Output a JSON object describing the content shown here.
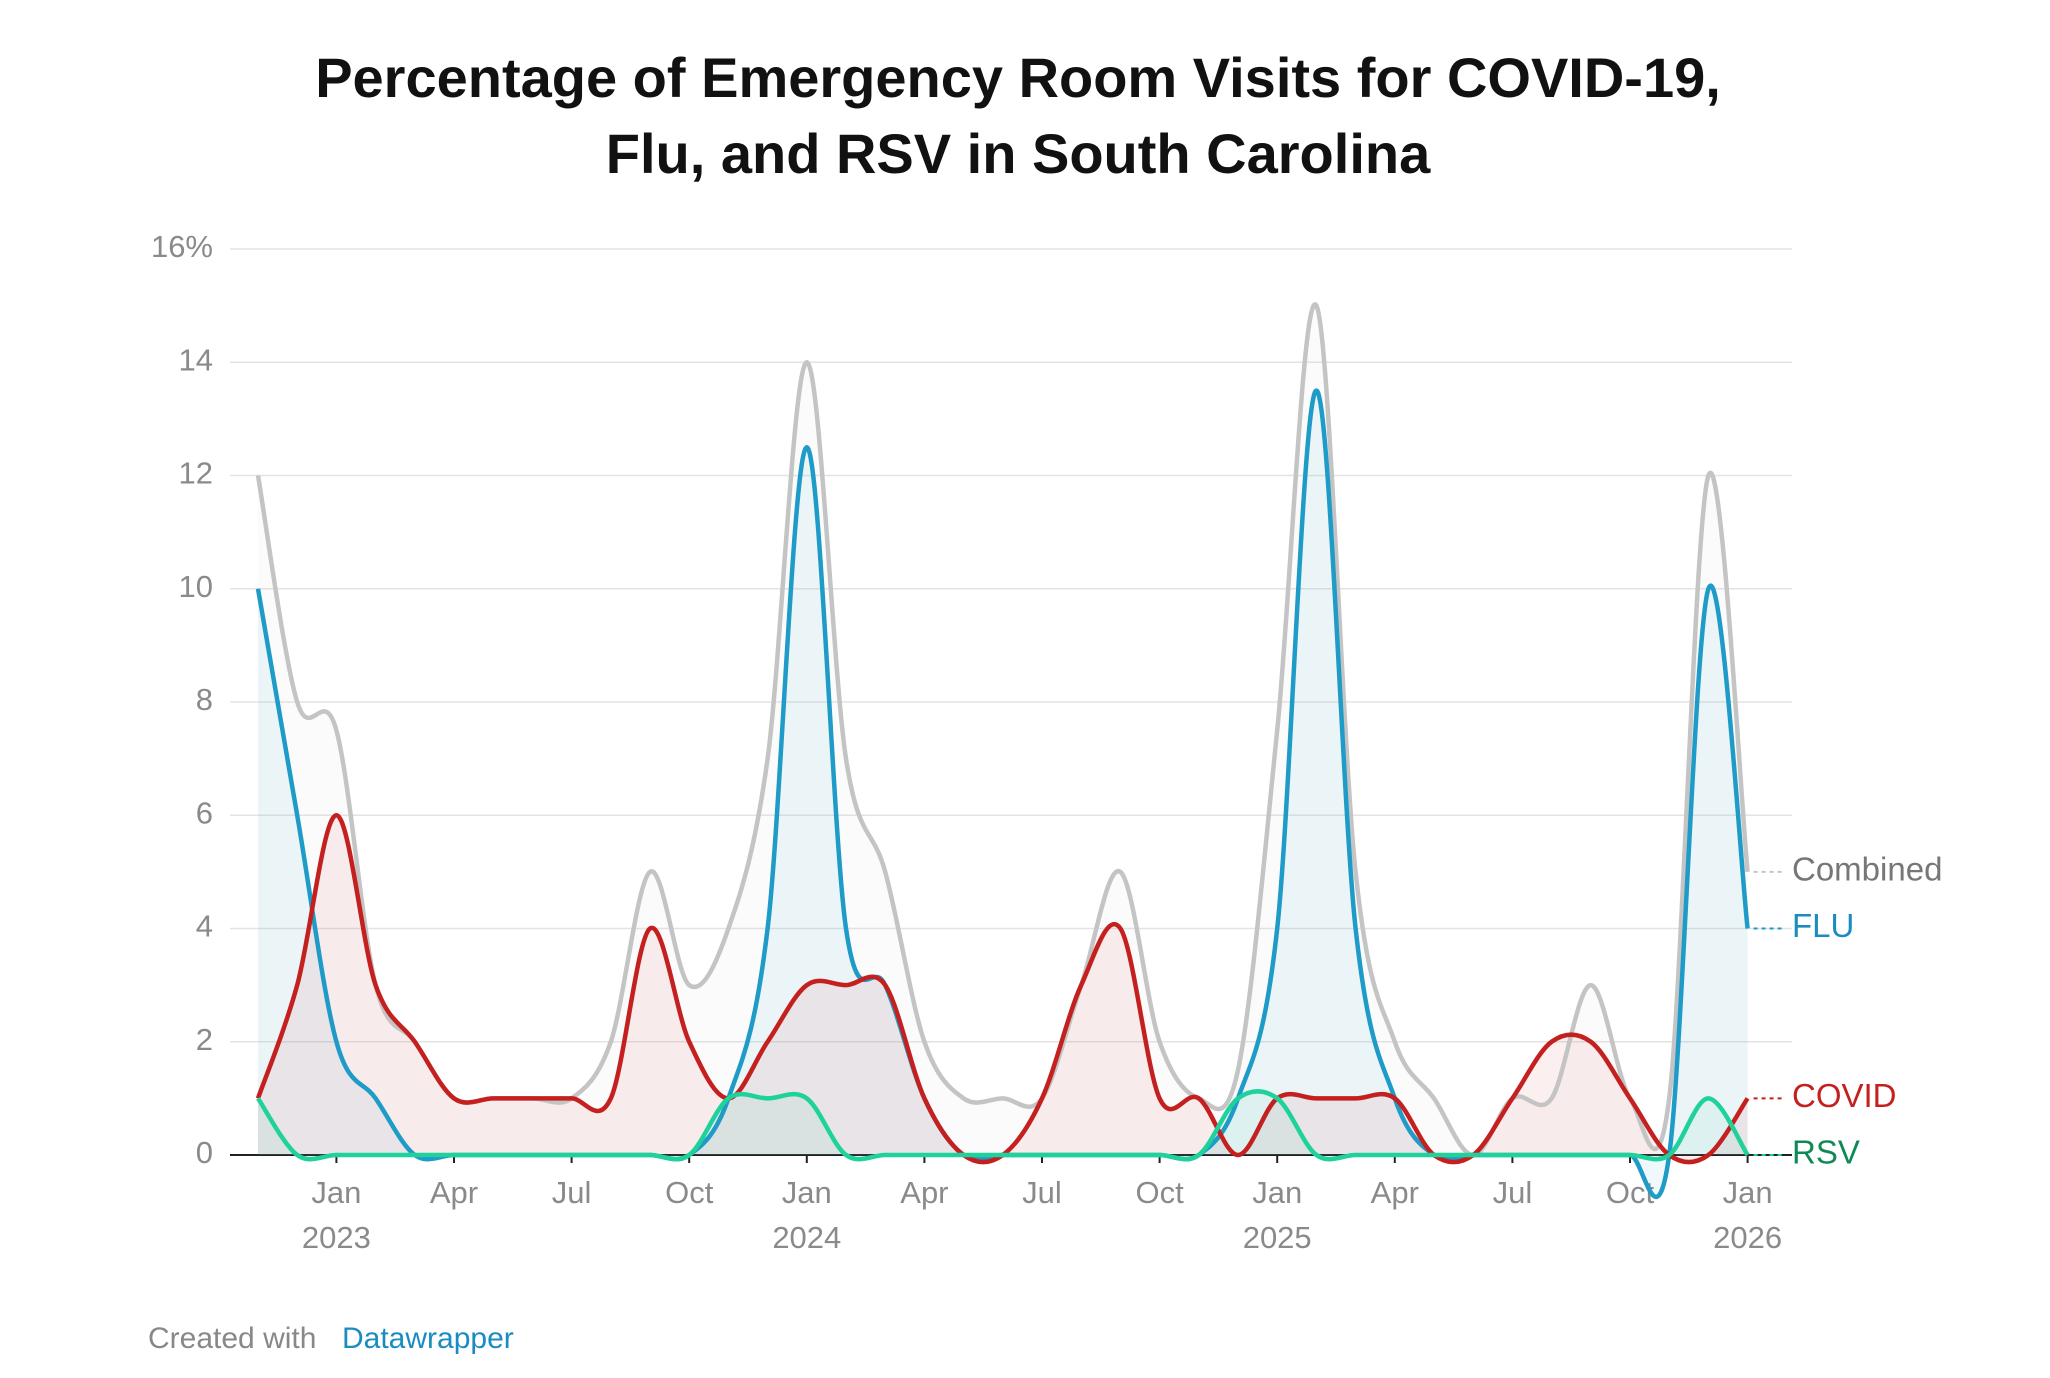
{
  "chart_data": {
    "type": "line",
    "title": "Percentage of Emergency Room Visits for COVID-19, Flu, and RSV in South Carolina",
    "footer": {
      "prefix": "Created with",
      "link": "Datawrapper"
    },
    "x": [
      "2022-11",
      "2022-12",
      "2023-01",
      "2023-02",
      "2023-03",
      "2023-04",
      "2023-05",
      "2023-06",
      "2023-07",
      "2023-08",
      "2023-09",
      "2023-10",
      "2023-11",
      "2023-12",
      "2024-01",
      "2024-02",
      "2024-03",
      "2024-04",
      "2024-05",
      "2024-06",
      "2024-07",
      "2024-08",
      "2024-09",
      "2024-10",
      "2024-11",
      "2024-12",
      "2025-01",
      "2025-02",
      "2025-03",
      "2025-04",
      "2025-05",
      "2025-06",
      "2025-07",
      "2025-08",
      "2025-09",
      "2025-10",
      "2025-11",
      "2025-12",
      "2026-01"
    ],
    "xticks": [
      {
        "value": "2023-01",
        "label": "Jan\n2023"
      },
      {
        "value": "2023-04",
        "label": "Apr"
      },
      {
        "value": "2023-07",
        "label": "Jul"
      },
      {
        "value": "2023-10",
        "label": "Oct"
      },
      {
        "value": "2024-01",
        "label": "Jan\n2024"
      },
      {
        "value": "2024-04",
        "label": "Apr"
      },
      {
        "value": "2024-07",
        "label": "Jul"
      },
      {
        "value": "2024-10",
        "label": "Oct"
      },
      {
        "value": "2025-01",
        "label": "Jan\n2025"
      },
      {
        "value": "2025-04",
        "label": "Apr"
      },
      {
        "value": "2025-07",
        "label": "Jul"
      },
      {
        "value": "2025-10",
        "label": "Oct"
      },
      {
        "value": "2026-01",
        "label": "Jan\n2026"
      }
    ],
    "ylim": [
      0,
      16
    ],
    "yticks": [
      0,
      2,
      4,
      6,
      8,
      10,
      12,
      14,
      {
        "value": 16,
        "label": "16%"
      }
    ],
    "grid": true,
    "series": [
      {
        "name": "Combined",
        "color": "#c4c4c4",
        "label_color": "#777777",
        "values": [
          12,
          8,
          7.5,
          3,
          2,
          1,
          1,
          1,
          1,
          2,
          5,
          3,
          4,
          7,
          14,
          7,
          5,
          2,
          1,
          1,
          1,
          3,
          5,
          2,
          1,
          1.5,
          7.5,
          15,
          5,
          2,
          1,
          0,
          1,
          1,
          3,
          1,
          1,
          12,
          5
        ]
      },
      {
        "name": "FLU",
        "color": "#1f9bc7",
        "label_color": "#1a8cc0",
        "values": [
          10,
          6,
          2,
          1,
          0,
          0,
          0,
          0,
          0,
          0,
          0,
          0,
          1,
          4,
          12.5,
          4,
          3,
          1,
          0,
          0,
          0,
          0,
          0,
          0,
          0,
          1,
          4,
          13.5,
          4,
          1,
          0,
          0,
          0,
          0,
          0,
          0,
          0,
          10,
          4
        ]
      },
      {
        "name": "COVID",
        "color": "#c4201f",
        "label_color": "#c4201f",
        "values": [
          1,
          3,
          6,
          3,
          2,
          1,
          1,
          1,
          1,
          1,
          4,
          2,
          1,
          2,
          3,
          3,
          3,
          1,
          0,
          0,
          1,
          3,
          4,
          1,
          1,
          0,
          1,
          1,
          1,
          1,
          0,
          0,
          1,
          2,
          2,
          1,
          0,
          0,
          1
        ]
      },
      {
        "name": "RSV",
        "color": "#1fd19b",
        "label_color": "#0f8a55",
        "values": [
          1,
          0,
          0,
          0,
          0,
          0,
          0,
          0,
          0,
          0,
          0,
          0,
          1,
          1,
          1,
          0,
          0,
          0,
          0,
          0,
          0,
          0,
          0,
          0,
          0,
          1,
          1,
          0,
          0,
          0,
          0,
          0,
          0,
          0,
          0,
          0,
          0,
          1,
          0
        ]
      }
    ]
  }
}
